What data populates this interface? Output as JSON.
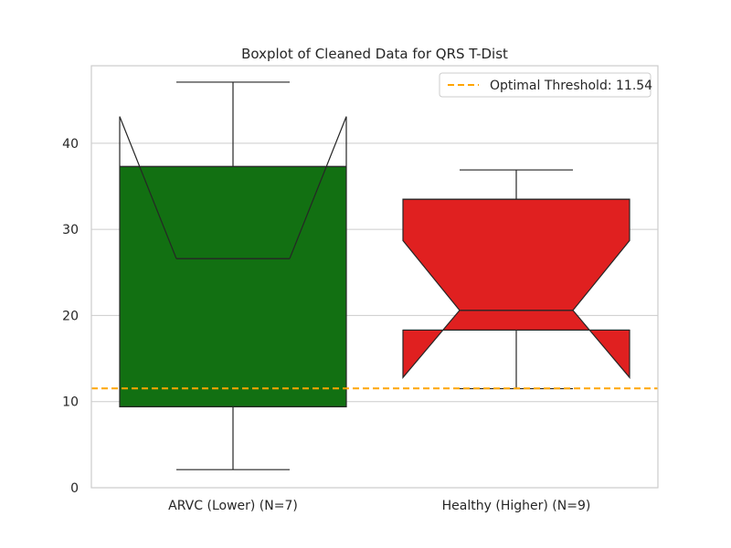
{
  "chart_data": {
    "type": "boxplot",
    "title": "Boxplot of Cleaned Data for QRS T-Dist",
    "xlabel": "",
    "ylabel": "",
    "ylim": [
      0,
      49
    ],
    "yticks": [
      0,
      10,
      20,
      30,
      40
    ],
    "grid": "horizontal",
    "legend_position": "top-right",
    "notched": true,
    "boxes": [
      {
        "category": "ARVC (Lower) (N=7)",
        "color": "#127012",
        "whisker_low": 2.1,
        "q1": 9.4,
        "notch_low": 43.1,
        "median": 26.6,
        "notch_high": 43.1,
        "q3": 37.3,
        "whisker_high": 47.1
      },
      {
        "category": "Healthy (Higher) (N=9)",
        "color": "#e02020",
        "whisker_low": 11.5,
        "q1": 18.3,
        "notch_low": 12.8,
        "median": 20.6,
        "notch_high": 28.7,
        "q3": 33.5,
        "whisker_high": 36.9
      }
    ],
    "reference_line": {
      "label": "Optimal Threshold: 11.54",
      "value": 11.54,
      "color": "#ffa500",
      "style": "dashed"
    }
  }
}
